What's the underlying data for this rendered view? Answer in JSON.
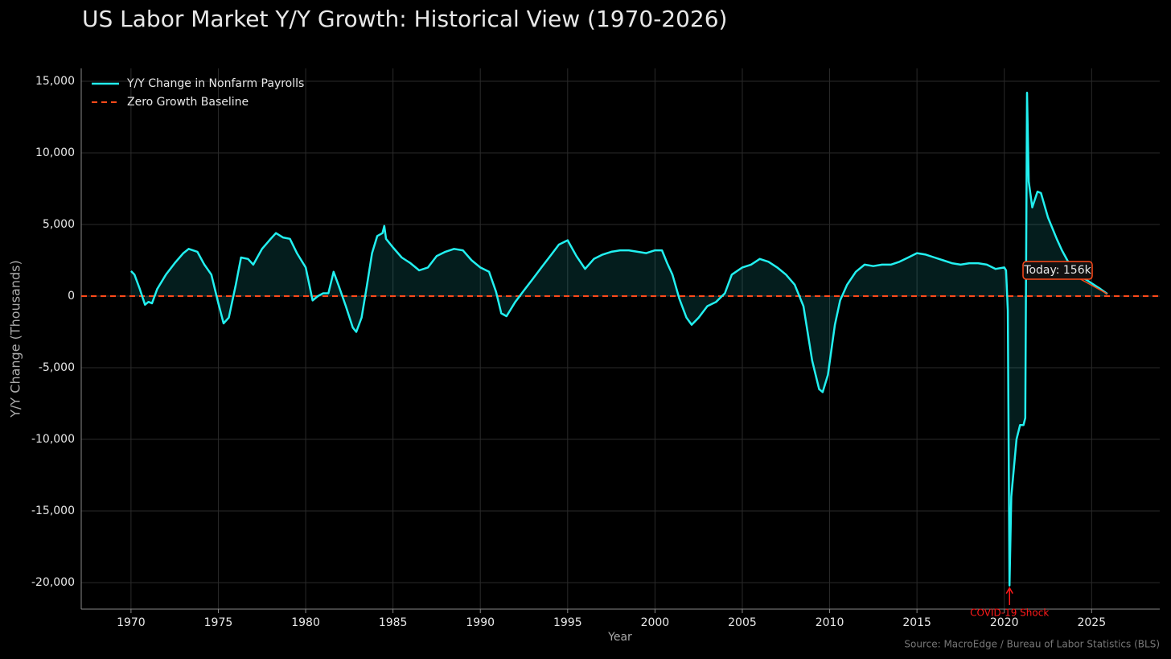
{
  "chart_data": {
    "type": "line",
    "title": "US Labor Market Y/Y Growth: Historical View (1970-2026)",
    "xlabel": "Year",
    "ylabel": "Y/Y Change (Thousands)",
    "source": "Source: MacroEdge / Bureau of Labor Statistics (BLS)",
    "xlim": [
      1967.15,
      2028.9
    ],
    "ylim": [
      -21850,
      15900
    ],
    "xticks": [
      1970,
      1975,
      1980,
      1985,
      1990,
      1995,
      2000,
      2005,
      2010,
      2015,
      2020,
      2025
    ],
    "yticks": [
      {
        "value": -20000,
        "label": "-20,000"
      },
      {
        "value": -15000,
        "label": "-15,000"
      },
      {
        "value": -10000,
        "label": "-10,000"
      },
      {
        "value": -5000,
        "label": "-5,000"
      },
      0,
      {
        "value": 5000,
        "label": "5,000"
      },
      {
        "value": 10000,
        "label": "10,000"
      },
      {
        "value": 15000,
        "label": "15,000"
      }
    ],
    "grid": true,
    "legend": "upper left",
    "x": [
      1970.0,
      1970.2,
      1970.5,
      1970.8,
      1971.0,
      1971.2,
      1971.5,
      1972.0,
      1972.5,
      1973.0,
      1973.3,
      1973.8,
      1974.2,
      1974.6,
      1975.0,
      1975.3,
      1975.6,
      1976.0,
      1976.3,
      1976.7,
      1977.0,
      1977.5,
      1978.0,
      1978.3,
      1978.7,
      1979.1,
      1979.5,
      1980.0,
      1980.4,
      1980.7,
      1981.0,
      1981.3,
      1981.6,
      1981.9,
      1982.3,
      1982.7,
      1982.9,
      1983.2,
      1983.5,
      1983.8,
      1984.1,
      1984.4,
      1984.5,
      1984.6,
      1985.0,
      1985.5,
      1986.0,
      1986.5,
      1987.0,
      1987.5,
      1988.0,
      1988.5,
      1989.0,
      1989.5,
      1990.0,
      1990.5,
      1990.9,
      1991.2,
      1991.5,
      1992.0,
      1992.5,
      1993.0,
      1993.5,
      1994.0,
      1994.5,
      1995.0,
      1995.5,
      1996.0,
      1996.5,
      1997.0,
      1997.5,
      1998.0,
      1998.5,
      1999.0,
      1999.5,
      2000.0,
      2000.4,
      2000.7,
      2001.0,
      2001.4,
      2001.8,
      2002.1,
      2002.5,
      2003.0,
      2003.5,
      2004.0,
      2004.4,
      2005.0,
      2005.5,
      2006.0,
      2006.5,
      2007.0,
      2007.5,
      2008.0,
      2008.5,
      2009.0,
      2009.4,
      2009.6,
      2009.9,
      2010.3,
      2010.6,
      2011.0,
      2011.5,
      2012.0,
      2012.5,
      2013.0,
      2013.5,
      2014.0,
      2014.5,
      2015.0,
      2015.5,
      2016.0,
      2016.5,
      2017.0,
      2017.5,
      2018.0,
      2018.5,
      2019.0,
      2019.5,
      2020.0,
      2020.1,
      2020.2,
      2020.3,
      2020.4,
      2020.7,
      2020.9,
      2021.1,
      2021.2,
      2021.3,
      2021.4,
      2021.6,
      2021.9,
      2022.1,
      2022.5,
      2023.0,
      2023.3,
      2023.7,
      2024.0,
      2024.5,
      2025.0,
      2025.5,
      2025.9
    ],
    "series": [
      {
        "name": "Y/Y Change in Nonfarm Payrolls",
        "color": "#22f0f0",
        "values": [
          1750,
          1500,
          500,
          -600,
          -400,
          -500,
          500,
          1500,
          2300,
          3000,
          3300,
          3100,
          2200,
          1500,
          -500,
          -1900,
          -1500,
          800,
          2700,
          2600,
          2200,
          3300,
          4000,
          4400,
          4100,
          4000,
          3000,
          2000,
          -300,
          0,
          200,
          200,
          1700,
          700,
          -700,
          -2200,
          -2500,
          -1500,
          700,
          3000,
          4200,
          4400,
          4900,
          4000,
          3400,
          2700,
          2300,
          1800,
          2000,
          2800,
          3100,
          3300,
          3200,
          2500,
          2000,
          1700,
          300,
          -1200,
          -1400,
          -400,
          400,
          1200,
          2000,
          2800,
          3600,
          3900,
          2800,
          1900,
          2600,
          2900,
          3100,
          3200,
          3200,
          3100,
          3000,
          3200,
          3200,
          2300,
          1500,
          -200,
          -1500,
          -2000,
          -1500,
          -700,
          -400,
          200,
          1500,
          2000,
          2200,
          2600,
          2400,
          2000,
          1500,
          800,
          -700,
          -4500,
          -6500,
          -6700,
          -5500,
          -2000,
          -300,
          800,
          1700,
          2200,
          2100,
          2200,
          2200,
          2400,
          2700,
          3000,
          2900,
          2700,
          2500,
          2300,
          2200,
          2300,
          2300,
          2200,
          1900,
          2000,
          1800,
          -1000,
          -20200,
          -14000,
          -10000,
          -9000,
          -9000,
          -8500,
          14200,
          8000,
          6200,
          7300,
          7200,
          5500,
          4000,
          3200,
          2300,
          1900,
          1300,
          900,
          500,
          156
        ]
      }
    ],
    "baseline": {
      "name": "Zero Growth Baseline",
      "value": 0,
      "color": "#ff4a1a"
    },
    "annotations": [
      {
        "text": "Today: 156k"
      },
      {
        "text": "COVID-19 Shock",
        "color": "#ff1a1a"
      }
    ]
  }
}
